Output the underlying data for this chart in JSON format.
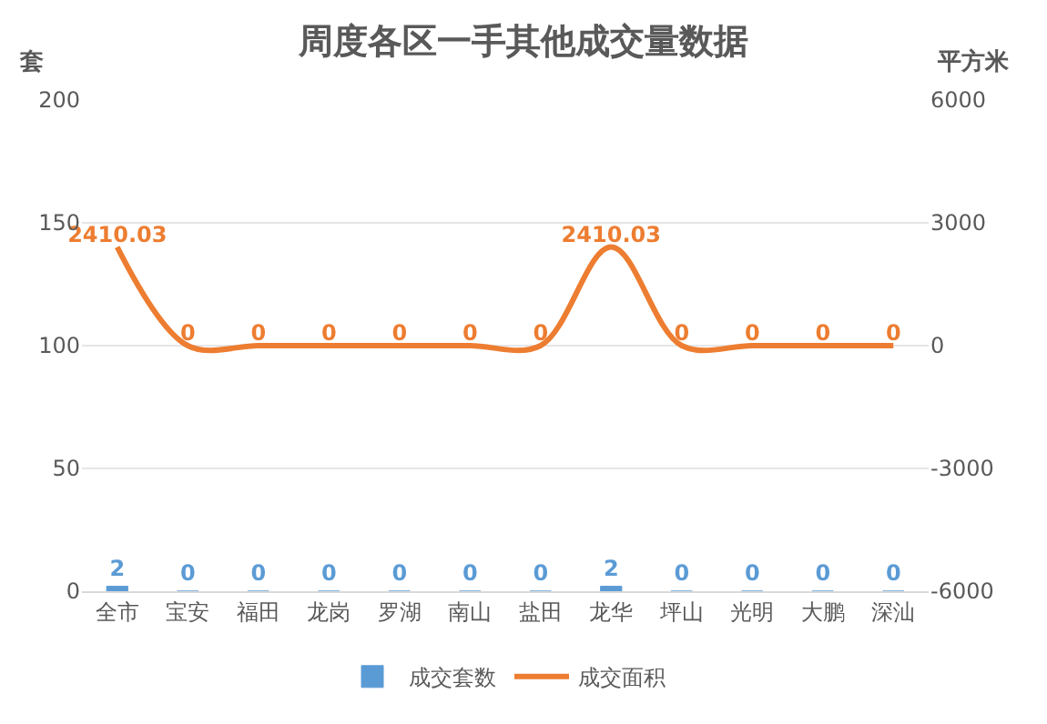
{
  "chart_data": {
    "type": "bar",
    "title": "周度各区一手其他成交量数据",
    "ylabel": "套",
    "y2label": "平方米",
    "categories": [
      "全市",
      "宝安",
      "福田",
      "龙岗",
      "罗湖",
      "南山",
      "盐田",
      "龙华",
      "坪山",
      "光明",
      "大鹏",
      "深汕"
    ],
    "series": [
      {
        "name": "成交套数",
        "color": "#5b9bd5",
        "values": [
          2,
          0,
          0,
          0,
          0,
          0,
          0,
          2,
          0,
          0,
          0,
          0
        ]
      },
      {
        "name": "成交面积",
        "type": "line",
        "axis": "y2",
        "color": "#ed7d31",
        "values": [
          2410.03,
          0,
          0,
          0,
          0,
          0,
          0,
          2410.03,
          0,
          0,
          0,
          0
        ]
      }
    ],
    "ylim": [
      0,
      200
    ],
    "yticks": [
      0,
      50,
      100,
      150,
      200
    ],
    "y2lim": [
      -6000,
      6000
    ],
    "y2ticks": [
      -6000,
      -3000,
      0,
      3000,
      6000
    ],
    "data_labels": true,
    "grid": "y",
    "legend": "bottom",
    "marker": "none",
    "line_style": "solid"
  }
}
